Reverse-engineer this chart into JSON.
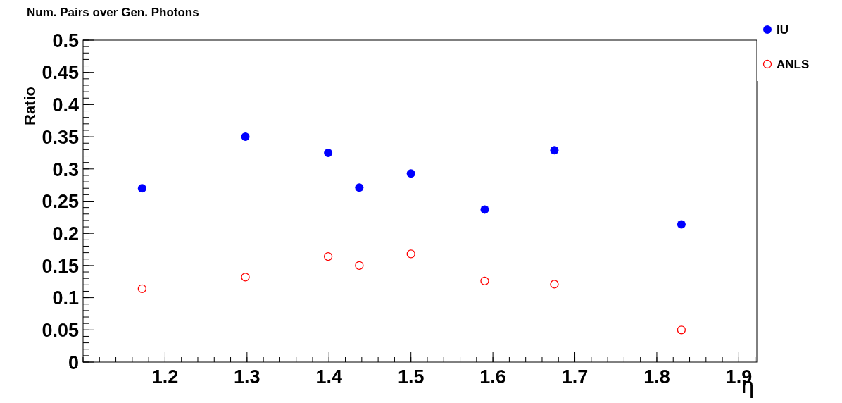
{
  "chart_data": {
    "type": "scatter",
    "title": "Num. Pairs over Gen. Photons",
    "xlabel": "η",
    "ylabel": "Ratio",
    "xlim": [
      1.1,
      1.922
    ],
    "xticks": [
      1.2,
      1.3,
      1.4,
      1.5,
      1.6,
      1.7,
      1.8,
      1.9
    ],
    "ylim": [
      0,
      0.5
    ],
    "yticks": [
      0,
      0.05,
      0.1,
      0.15,
      0.2,
      0.25,
      0.3,
      0.35,
      0.4,
      0.45,
      0.5
    ],
    "marker": "circle",
    "legend": "top right",
    "grid": false,
    "series": [
      {
        "name": "IU",
        "color": "#0000ff",
        "x": [
          1.172,
          1.298,
          1.399,
          1.437,
          1.5,
          1.59,
          1.675,
          1.83
        ],
        "values": [
          0.27,
          0.35,
          0.325,
          0.271,
          0.293,
          0.237,
          0.329,
          0.214
        ]
      },
      {
        "name": "ANLS",
        "color": "#ff0000",
        "x": [
          1.172,
          1.298,
          1.399,
          1.437,
          1.5,
          1.59,
          1.675,
          1.83
        ],
        "values": [
          0.114,
          0.132,
          0.164,
          0.15,
          0.168,
          0.126,
          0.121,
          0.05
        ]
      }
    ]
  }
}
